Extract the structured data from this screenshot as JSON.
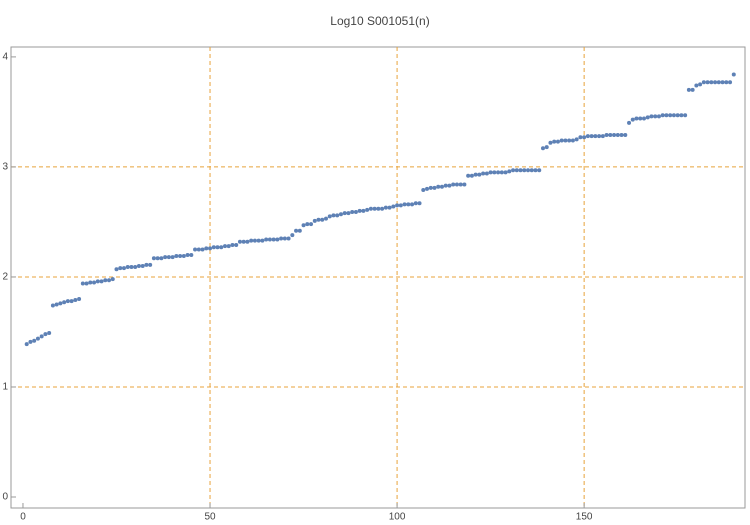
{
  "chart_data": {
    "type": "scatter",
    "title": "Log10 S001051(n)",
    "x": [
      1,
      2,
      3,
      4,
      5,
      6,
      7,
      8,
      9,
      10,
      11,
      12,
      13,
      14,
      15,
      16,
      17,
      18,
      19,
      20,
      21,
      22,
      23,
      24,
      25,
      26,
      27,
      28,
      29,
      30,
      31,
      32,
      33,
      34,
      35,
      36,
      37,
      38,
      39,
      40,
      41,
      42,
      43,
      44,
      45,
      46,
      47,
      48,
      49,
      50,
      51,
      52,
      53,
      54,
      55,
      56,
      57,
      58,
      59,
      60,
      61,
      62,
      63,
      64,
      65,
      66,
      67,
      68,
      69,
      70,
      71,
      72,
      73,
      74,
      75,
      76,
      77,
      78,
      79,
      80,
      81,
      82,
      83,
      84,
      85,
      86,
      87,
      88,
      89,
      90,
      91,
      92,
      93,
      94,
      95,
      96,
      97,
      98,
      99,
      100,
      101,
      102,
      103,
      104,
      105,
      106,
      107,
      108,
      109,
      110,
      111,
      112,
      113,
      114,
      115,
      116,
      117,
      118,
      119,
      120,
      121,
      122,
      123,
      124,
      125,
      126,
      127,
      128,
      129,
      130,
      131,
      132,
      133,
      134,
      135,
      136,
      137,
      138,
      139,
      140,
      141,
      142,
      143,
      144,
      145,
      146,
      147,
      148,
      149,
      150,
      151,
      152,
      153,
      154,
      155,
      156,
      157,
      158,
      159,
      160,
      161,
      162,
      163,
      164,
      165,
      166,
      167,
      168,
      169,
      170,
      171,
      172,
      173,
      174,
      175,
      176,
      177,
      178,
      179,
      180,
      181,
      182,
      183,
      184,
      185,
      186,
      187,
      188,
      189,
      190
    ],
    "values": [
      1.39,
      1.41,
      1.42,
      1.44,
      1.46,
      1.48,
      1.49,
      1.74,
      1.75,
      1.76,
      1.77,
      1.78,
      1.78,
      1.79,
      1.8,
      1.94,
      1.94,
      1.95,
      1.95,
      1.96,
      1.96,
      1.97,
      1.97,
      1.98,
      2.07,
      2.08,
      2.08,
      2.09,
      2.09,
      2.09,
      2.1,
      2.1,
      2.11,
      2.11,
      2.17,
      2.17,
      2.17,
      2.18,
      2.18,
      2.18,
      2.19,
      2.19,
      2.19,
      2.2,
      2.2,
      2.25,
      2.25,
      2.25,
      2.26,
      2.26,
      2.27,
      2.27,
      2.27,
      2.28,
      2.28,
      2.29,
      2.29,
      2.32,
      2.32,
      2.32,
      2.33,
      2.33,
      2.33,
      2.33,
      2.34,
      2.34,
      2.34,
      2.34,
      2.35,
      2.35,
      2.35,
      2.38,
      2.42,
      2.42,
      2.47,
      2.48,
      2.48,
      2.51,
      2.52,
      2.52,
      2.53,
      2.55,
      2.56,
      2.56,
      2.57,
      2.58,
      2.58,
      2.59,
      2.59,
      2.6,
      2.6,
      2.61,
      2.62,
      2.62,
      2.62,
      2.62,
      2.63,
      2.63,
      2.64,
      2.65,
      2.65,
      2.66,
      2.66,
      2.66,
      2.67,
      2.67,
      2.79,
      2.8,
      2.81,
      2.81,
      2.82,
      2.82,
      2.83,
      2.83,
      2.84,
      2.84,
      2.84,
      2.84,
      2.92,
      2.92,
      2.93,
      2.93,
      2.94,
      2.94,
      2.95,
      2.95,
      2.95,
      2.95,
      2.95,
      2.96,
      2.97,
      2.97,
      2.97,
      2.97,
      2.97,
      2.97,
      2.97,
      2.97,
      3.17,
      3.18,
      3.22,
      3.23,
      3.23,
      3.24,
      3.24,
      3.24,
      3.24,
      3.25,
      3.27,
      3.27,
      3.28,
      3.28,
      3.28,
      3.28,
      3.28,
      3.29,
      3.29,
      3.29,
      3.29,
      3.29,
      3.29,
      3.4,
      3.43,
      3.44,
      3.44,
      3.44,
      3.45,
      3.46,
      3.46,
      3.46,
      3.47,
      3.47,
      3.47,
      3.47,
      3.47,
      3.47,
      3.47,
      3.7,
      3.7,
      3.74,
      3.75,
      3.77,
      3.77,
      3.77,
      3.77,
      3.77,
      3.77,
      3.77,
      3.77,
      3.84
    ],
    "color": "#5e81b5",
    "xlim": [
      -3.2,
      193
    ],
    "ylim": [
      -0.1,
      4.09
    ],
    "xticks": [
      0,
      50,
      100,
      150
    ],
    "yticks": [
      0,
      1,
      2,
      3,
      4
    ],
    "grid": {
      "x": [
        50,
        100,
        150
      ],
      "y": [
        1,
        2,
        3
      ],
      "color": "#e8a33b"
    }
  }
}
